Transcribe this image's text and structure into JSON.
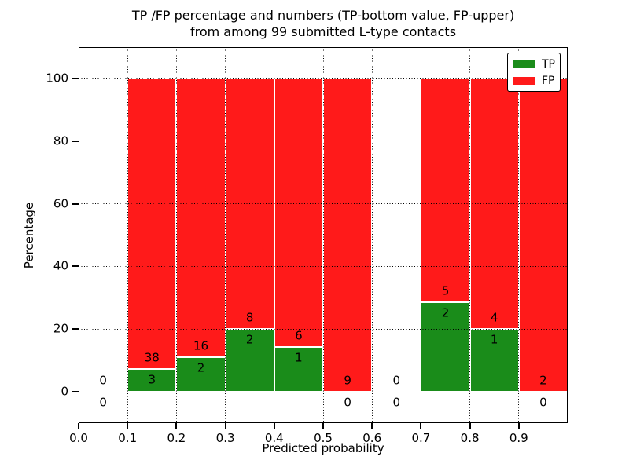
{
  "chart_data": {
    "type": "bar",
    "stacked": true,
    "normalized_to_100_per_bin": true,
    "title_lines": [
      "TP /FP percentage and numbers (TP-bottom value, FP-upper)",
      "from among 99 submitted L-type contacts"
    ],
    "xlabel": "Predicted probability",
    "ylabel": "Percentage",
    "x_bin_edges": [
      0.0,
      0.1,
      0.2,
      0.3,
      0.4,
      0.5,
      0.6,
      0.7,
      0.8,
      0.9,
      1.0
    ],
    "series": [
      {
        "name": "TP",
        "color": "#1a8c1a",
        "counts": [
          0,
          3,
          2,
          2,
          1,
          0,
          0,
          2,
          1,
          0
        ]
      },
      {
        "name": "FP",
        "color": "#ff1a1a",
        "counts": [
          0,
          38,
          16,
          8,
          6,
          9,
          0,
          5,
          4,
          2
        ]
      }
    ],
    "bin_tp_percentages": [
      0,
      7.32,
      11.11,
      20.0,
      14.29,
      0,
      0,
      28.57,
      20.0,
      0
    ],
    "xticks": [
      "0.0",
      "0.1",
      "0.2",
      "0.3",
      "0.4",
      "0.5",
      "0.6",
      "0.7",
      "0.8",
      "0.9"
    ],
    "yticks": [
      0,
      20,
      40,
      60,
      80,
      100
    ],
    "xlim": [
      0.0,
      1.0
    ],
    "ylim": [
      -10,
      110
    ],
    "grid": true,
    "grid_style": "dotted",
    "legend_position": "upper right",
    "total_contacts": 99
  }
}
